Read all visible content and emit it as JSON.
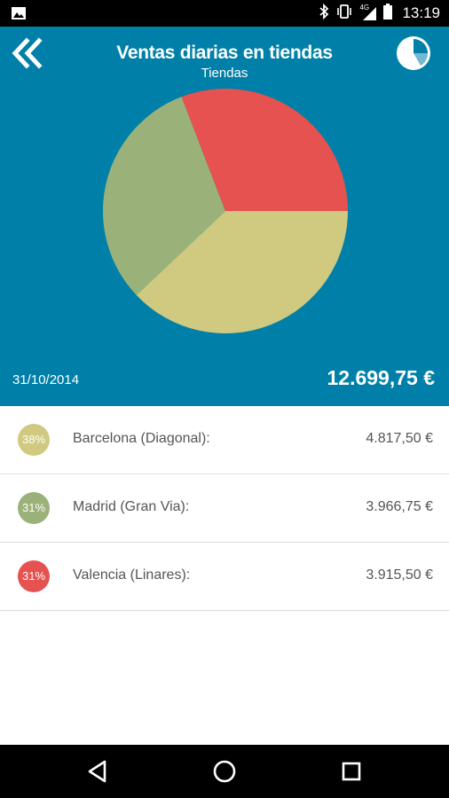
{
  "status_bar": {
    "time": "13:19",
    "network": "4G",
    "icons": [
      "image-icon",
      "bluetooth-icon",
      "vibrate-icon",
      "signal-icon",
      "battery-icon"
    ]
  },
  "header": {
    "title": "Ventas diarias en tiendas",
    "subtitle": "Tiendas",
    "back_icon": "double-chevron-left-icon",
    "chart_icon": "pie-chart-icon",
    "date": "31/10/2014",
    "total": "12.699,75 €",
    "background": "#0080a8"
  },
  "chart_data": {
    "type": "pie",
    "slices": [
      {
        "label": "Barcelona (Diagonal):",
        "value": 4817.5,
        "percent": 38,
        "color": "#cfca80"
      },
      {
        "label": "Madrid (Gran Via):",
        "value": 3966.75,
        "percent": 31,
        "color": "#9ab27a"
      },
      {
        "label": "Valencia (Linares):",
        "value": 3915.5,
        "percent": 31,
        "color": "#e5524f"
      }
    ]
  },
  "stores": [
    {
      "percent": "38%",
      "name": "Barcelona (Diagonal):",
      "amount": "4.817,50 €",
      "color": "#cfca80"
    },
    {
      "percent": "31%",
      "name": "Madrid (Gran Via):",
      "amount": "3.966,75 €",
      "color": "#9ab27a"
    },
    {
      "percent": "31%",
      "name": "Valencia (Linares):",
      "amount": "3.915,50 €",
      "color": "#e5524f"
    }
  ],
  "nav_bar": {
    "icons": [
      "back-triangle-icon",
      "home-circle-icon",
      "recents-square-icon"
    ]
  }
}
